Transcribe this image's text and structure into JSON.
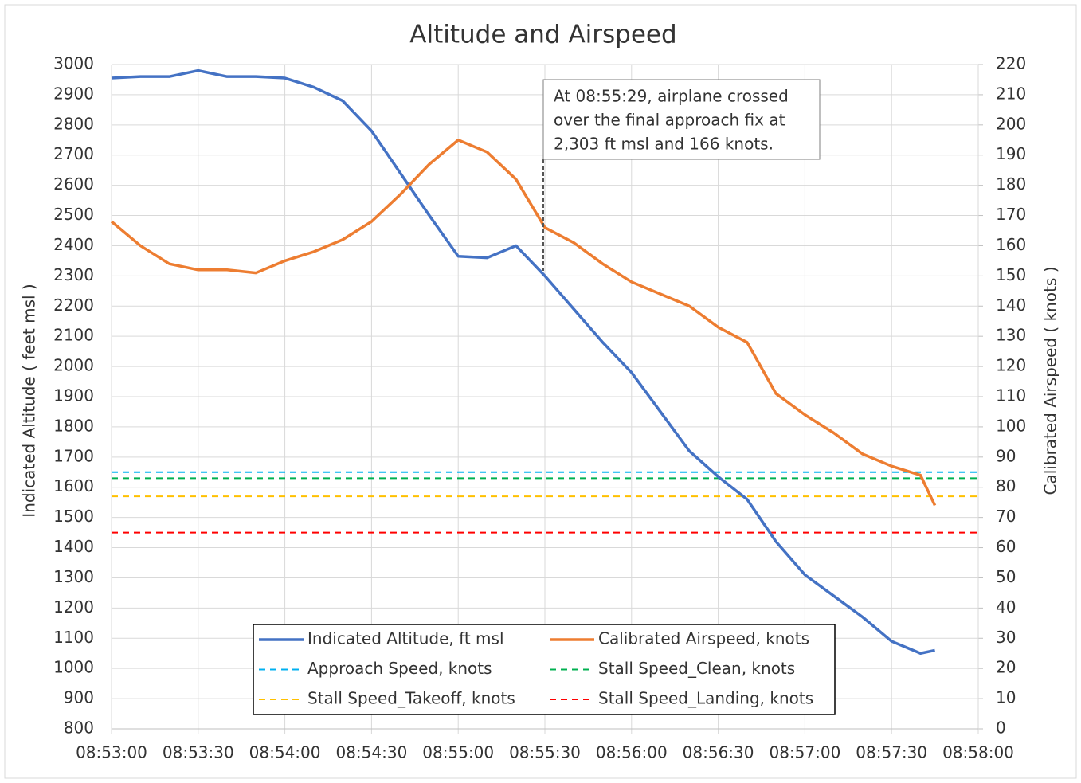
{
  "chart_data": {
    "type": "line",
    "title": "Altitude and Airspeed",
    "y_label": "Indicated Altitude ( feet msl )",
    "y2_label": "Calibrated Airspeed ( knots )",
    "x": [
      "08:53:00",
      "08:53:10",
      "08:53:20",
      "08:53:30",
      "08:53:40",
      "08:53:50",
      "08:54:00",
      "08:54:10",
      "08:54:20",
      "08:54:30",
      "08:54:40",
      "08:54:50",
      "08:55:00",
      "08:55:10",
      "08:55:20",
      "08:55:30",
      "08:55:40",
      "08:55:50",
      "08:56:00",
      "08:56:10",
      "08:56:20",
      "08:56:30",
      "08:56:40",
      "08:56:50",
      "08:57:00",
      "08:57:10",
      "08:57:20",
      "08:57:30",
      "08:57:40",
      "08:57:45"
    ],
    "xlim": [
      "08:53:00",
      "08:58:00"
    ],
    "xticks": [
      "08:53:00",
      "08:53:30",
      "08:54:00",
      "08:54:30",
      "08:55:00",
      "08:55:30",
      "08:56:00",
      "08:56:30",
      "08:57:00",
      "08:57:30",
      "08:58:00"
    ],
    "ylim": [
      800,
      3000
    ],
    "yticks": [
      800,
      900,
      1000,
      1100,
      1200,
      1300,
      1400,
      1500,
      1600,
      1700,
      1800,
      1900,
      2000,
      2100,
      2200,
      2300,
      2400,
      2500,
      2600,
      2700,
      2800,
      2900,
      3000
    ],
    "y2lim": [
      0,
      220
    ],
    "y2ticks": [
      0,
      10,
      20,
      30,
      40,
      50,
      60,
      70,
      80,
      90,
      100,
      110,
      120,
      130,
      140,
      150,
      160,
      170,
      180,
      190,
      200,
      210,
      220
    ],
    "grid": true,
    "series": [
      {
        "name": "Indicated Altitude, ft msl",
        "color": "#4472c4",
        "values": [
          2955,
          2960,
          2960,
          2980,
          2960,
          2960,
          2955,
          2925,
          2880,
          2780,
          2640,
          2500,
          2365,
          2360,
          2400,
          2300,
          2190,
          2080,
          1980,
          1850,
          1720,
          1635,
          1560,
          1420,
          1310,
          1240,
          1170,
          1090,
          1050,
          1060
        ]
      },
      {
        "name": "Calibrated Airspeed, knots",
        "color": "#ed7d31",
        "axis": "y2",
        "values": [
          168,
          160,
          154,
          152,
          152,
          151,
          155,
          158,
          162,
          168,
          177,
          187,
          195,
          191,
          182,
          166,
          161,
          154,
          148,
          144,
          140,
          133,
          128,
          111,
          104,
          98,
          91,
          87,
          84,
          74
        ]
      },
      {
        "name": "Approach Speed, knots",
        "color": "#00b0f0",
        "axis": "y2",
        "dashed": true,
        "x": [
          "08:53:00",
          "08:58:00"
        ],
        "values": [
          85,
          85
        ]
      },
      {
        "name": "Stall Speed_Clean, knots",
        "color": "#00b050",
        "axis": "y2",
        "dashed": true,
        "x": [
          "08:53:00",
          "08:58:00"
        ],
        "values": [
          83,
          83
        ]
      },
      {
        "name": "Stall Speed_Takeoff, knots",
        "color": "#ffc000",
        "axis": "y2",
        "dashed": true,
        "x": [
          "08:53:00",
          "08:58:00"
        ],
        "values": [
          77,
          77
        ]
      },
      {
        "name": "Stall Speed_Landing, knots",
        "color": "#ff0000",
        "axis": "y2",
        "dashed": true,
        "x": [
          "08:53:00",
          "08:58:00"
        ],
        "values": [
          65,
          65
        ]
      }
    ],
    "annotation": [
      "At 08:55:29, airplane crossed",
      "over the final approach fix at",
      "2,303 ft msl and 166 knots."
    ]
  }
}
